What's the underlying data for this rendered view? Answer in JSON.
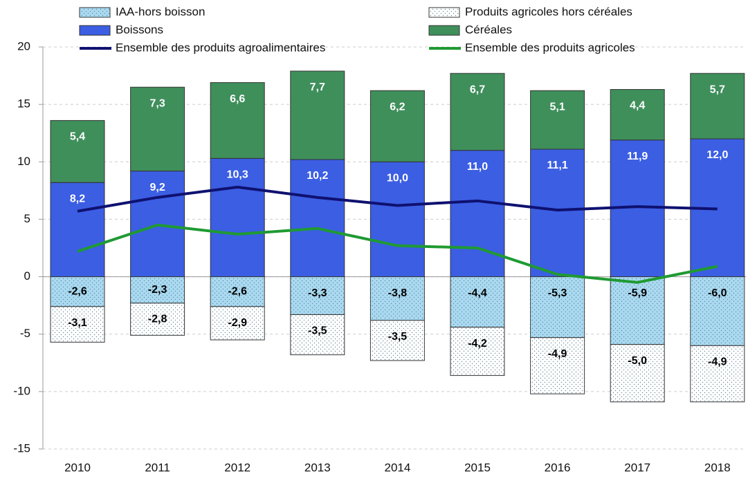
{
  "chart_data": {
    "type": "bar",
    "categories": [
      "2010",
      "2011",
      "2012",
      "2013",
      "2014",
      "2015",
      "2016",
      "2017",
      "2018"
    ],
    "series": [
      {
        "name": "IAA-hors boisson",
        "type": "bar",
        "color": "#a9daf2",
        "pattern": "dots",
        "label_color": "#000",
        "values": [
          -2.6,
          -2.3,
          -2.6,
          -3.3,
          -3.8,
          -4.4,
          -5.3,
          -5.9,
          -6.0
        ],
        "value_labels": [
          "-2,6",
          "-2,3",
          "-2,6",
          "-3,3",
          "-3,8",
          "-4,4",
          "-5,3",
          "-5,9",
          "-6,0"
        ]
      },
      {
        "name": "Boissons",
        "type": "bar",
        "color": "#3b5ee3",
        "label_color": "#fff",
        "values": [
          8.2,
          9.2,
          10.3,
          10.2,
          10.0,
          11.0,
          11.1,
          11.9,
          12.0
        ],
        "value_labels": [
          "8,2",
          "9,2",
          "10,3",
          "10,2",
          "10,0",
          "11,0",
          "11,1",
          "11,9",
          "12,0"
        ]
      },
      {
        "name": "Ensemble des produits agroalimentaires",
        "type": "line",
        "color": "#0f1170",
        "values": [
          5.7,
          6.9,
          7.8,
          6.9,
          6.2,
          6.6,
          5.8,
          6.1,
          5.9
        ]
      },
      {
        "name": "Produits agricoles hors céréales",
        "type": "bar",
        "color": "#ffffff",
        "pattern": "dots",
        "label_color": "#000",
        "values": [
          -3.1,
          -2.8,
          -2.9,
          -3.5,
          -3.5,
          -4.2,
          -4.9,
          -5.0,
          -4.9
        ],
        "value_labels": [
          "-3,1",
          "-2,8",
          "-2,9",
          "-3,5",
          "-3,5",
          "-4,2",
          "-4,9",
          "-5,0",
          "-4,9"
        ]
      },
      {
        "name": "Céréales",
        "type": "bar",
        "color": "#3f8f5b",
        "label_color": "#fff",
        "values": [
          5.4,
          7.3,
          6.6,
          7.7,
          6.2,
          6.7,
          5.1,
          4.4,
          5.7
        ],
        "value_labels": [
          "5,4",
          "7,3",
          "6,6",
          "7,7",
          "6,2",
          "6,7",
          "5,1",
          "4,4",
          "5,7"
        ]
      },
      {
        "name": "Ensemble des produits agricoles",
        "type": "line",
        "color": "#1f9a32",
        "values": [
          2.2,
          4.5,
          3.7,
          4.2,
          2.7,
          2.5,
          0.2,
          -0.5,
          0.9
        ]
      }
    ],
    "ylim": [
      -15,
      20
    ],
    "yticks": [
      -15,
      -10,
      -5,
      0,
      5,
      10,
      15,
      20
    ],
    "grid": true
  }
}
